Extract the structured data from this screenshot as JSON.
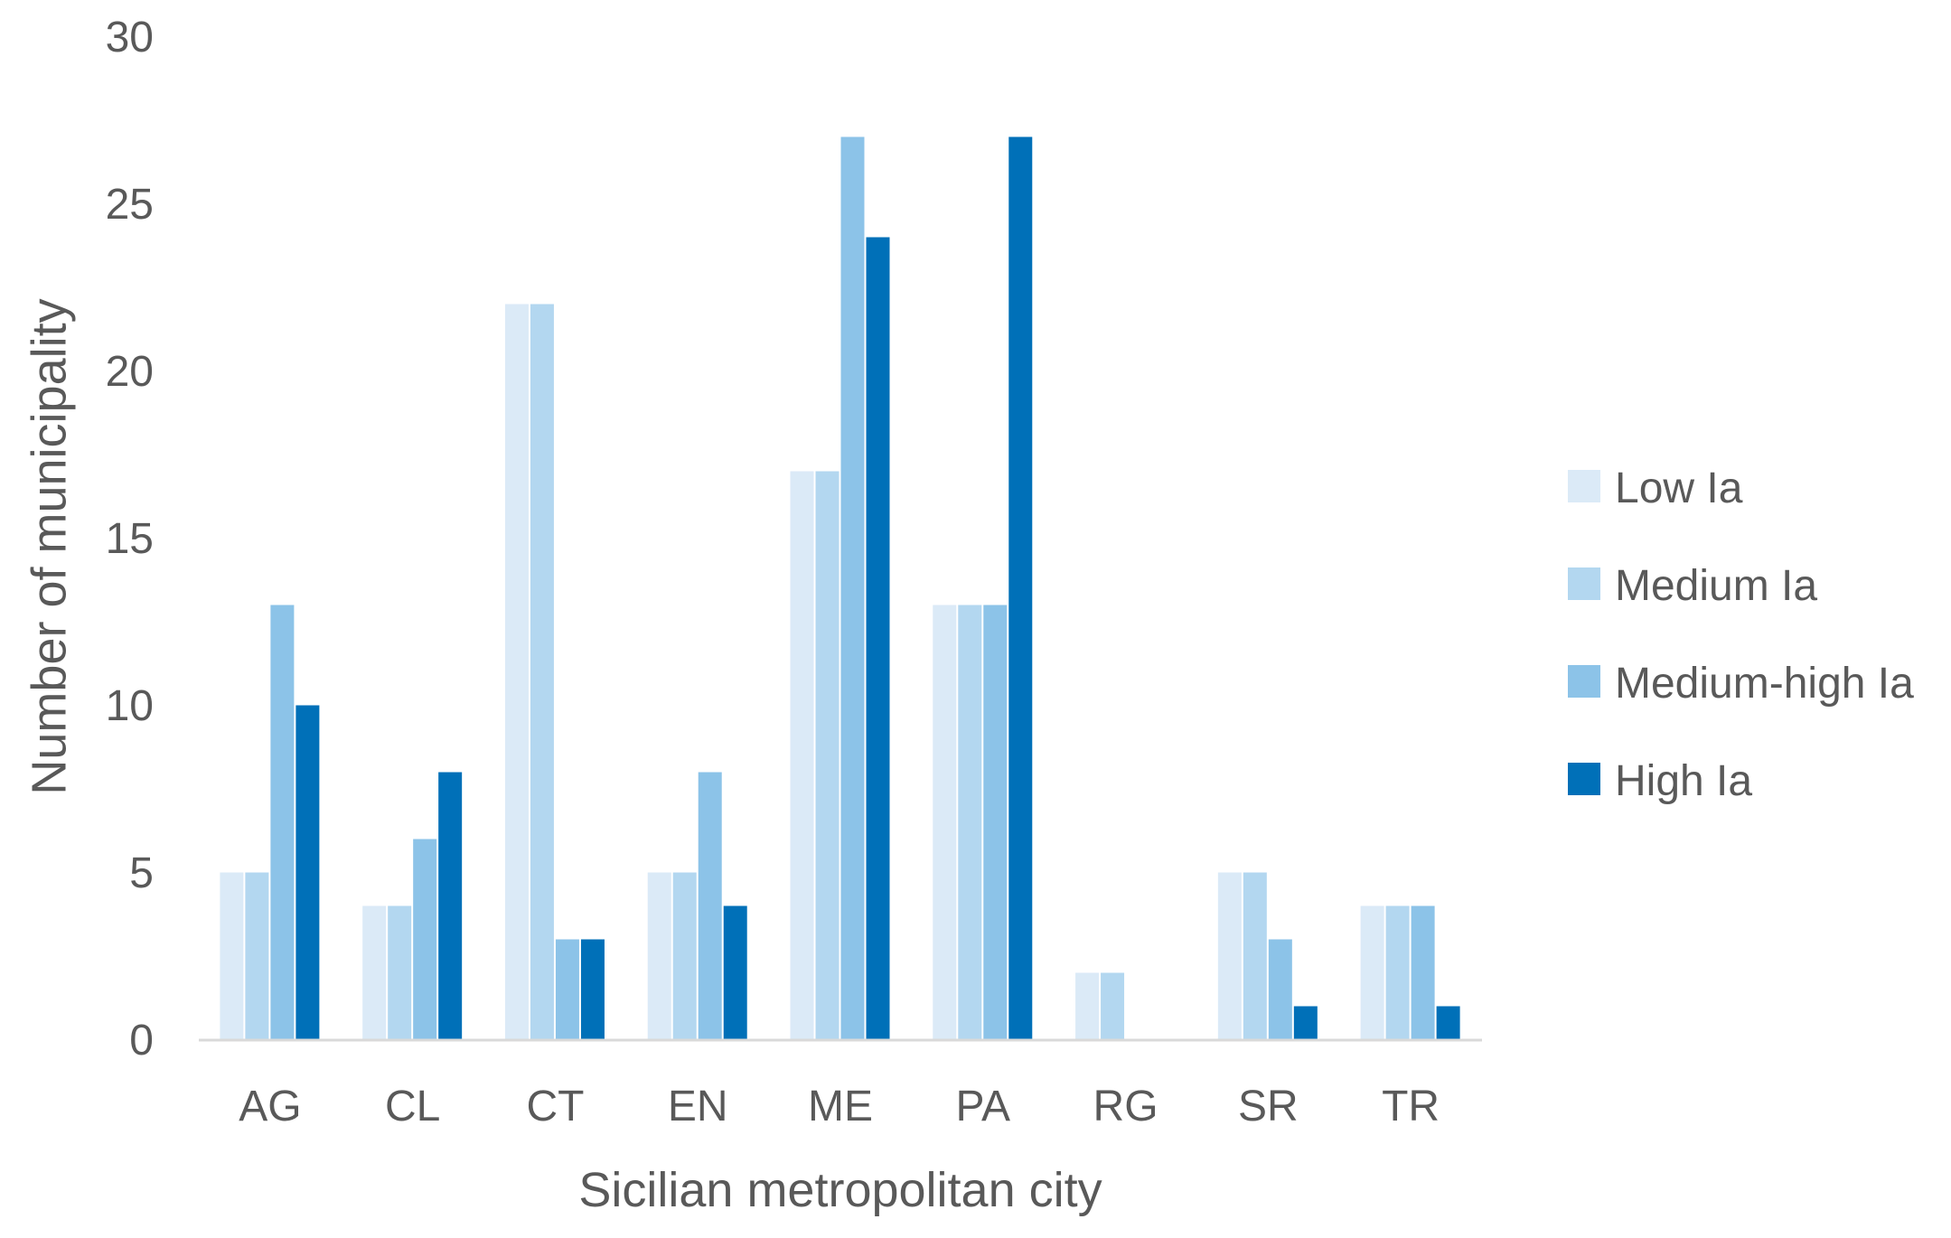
{
  "chart_data": {
    "type": "bar",
    "title": "",
    "xlabel": "Sicilian metropolitan city",
    "ylabel": "Number of municipality",
    "ylim": [
      0,
      30
    ],
    "yticks": [
      0,
      5,
      10,
      15,
      20,
      25,
      30
    ],
    "grid": false,
    "legend_position": "right",
    "categories": [
      "AG",
      "CL",
      "CT",
      "EN",
      "ME",
      "PA",
      "RG",
      "SR",
      "TR"
    ],
    "series": [
      {
        "name": "Low Ia",
        "color": "#dbeaf7",
        "values": [
          5,
          4,
          22,
          5,
          17,
          13,
          2,
          5,
          4
        ]
      },
      {
        "name": "Medium Ia",
        "color": "#b3d7f0",
        "values": [
          5,
          4,
          22,
          5,
          17,
          13,
          2,
          5,
          4
        ]
      },
      {
        "name": "Medium-high Ia",
        "color": "#8cc3e8",
        "values": [
          13,
          6,
          3,
          8,
          27,
          13,
          0,
          3,
          4
        ]
      },
      {
        "name": "High Ia",
        "color": "#0070b8",
        "values": [
          10,
          8,
          3,
          4,
          24,
          27,
          0,
          1,
          1
        ]
      }
    ]
  }
}
